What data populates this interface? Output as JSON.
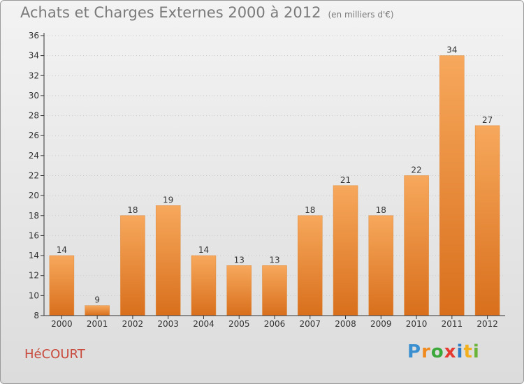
{
  "title": "Achats et Charges Externes 2000 à 2012",
  "unit": "(en milliers d'€)",
  "commune": "HéCOURT",
  "logo": {
    "letters": [
      "P",
      "r",
      "o",
      "x",
      "i",
      "t",
      "i"
    ],
    "colors": [
      "#3a8fd0",
      "#f08a1e",
      "#3aa83a",
      "#e6392f",
      "#2f7cc6",
      "#f2b01e",
      "#6bb43a"
    ]
  },
  "colors": {
    "bar_top": "#f7a85c",
    "bar_bottom": "#d86f1c",
    "axis": "#333333",
    "grid": "#cccccc"
  },
  "chart_data": {
    "type": "bar",
    "title": "Achats et Charges Externes 2000 à 2012",
    "categories": [
      "2000",
      "2001",
      "2002",
      "2003",
      "2004",
      "2005",
      "2006",
      "2007",
      "2008",
      "2009",
      "2010",
      "2011",
      "2012"
    ],
    "values": [
      14,
      9,
      18,
      19,
      14,
      13,
      13,
      18,
      21,
      18,
      22,
      34,
      27
    ],
    "ylim": [
      8,
      36
    ],
    "yticks": [
      8,
      10,
      12,
      14,
      16,
      18,
      20,
      22,
      24,
      26,
      28,
      30,
      32,
      34,
      36
    ],
    "grid": "horizontal dotted",
    "legend": "none"
  }
}
